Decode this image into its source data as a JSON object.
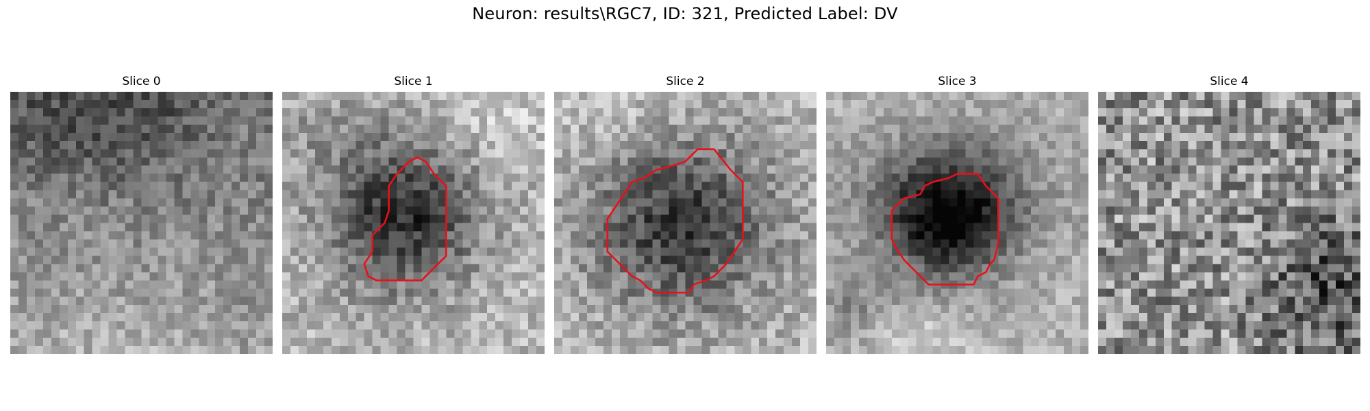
{
  "figure": {
    "title": "Neuron: results\\RGC7, ID: 321, Predicted Label: DV"
  },
  "colors": {
    "contour": "#e8101a",
    "background": "#ffffff",
    "text": "#000000"
  },
  "panels": [
    {
      "title": "Slice 0",
      "has_contour": false
    },
    {
      "title": "Slice 1",
      "has_contour": true
    },
    {
      "title": "Slice 2",
      "has_contour": true
    },
    {
      "title": "Slice 3",
      "has_contour": true
    },
    {
      "title": "Slice 4",
      "has_contour": false
    }
  ]
}
